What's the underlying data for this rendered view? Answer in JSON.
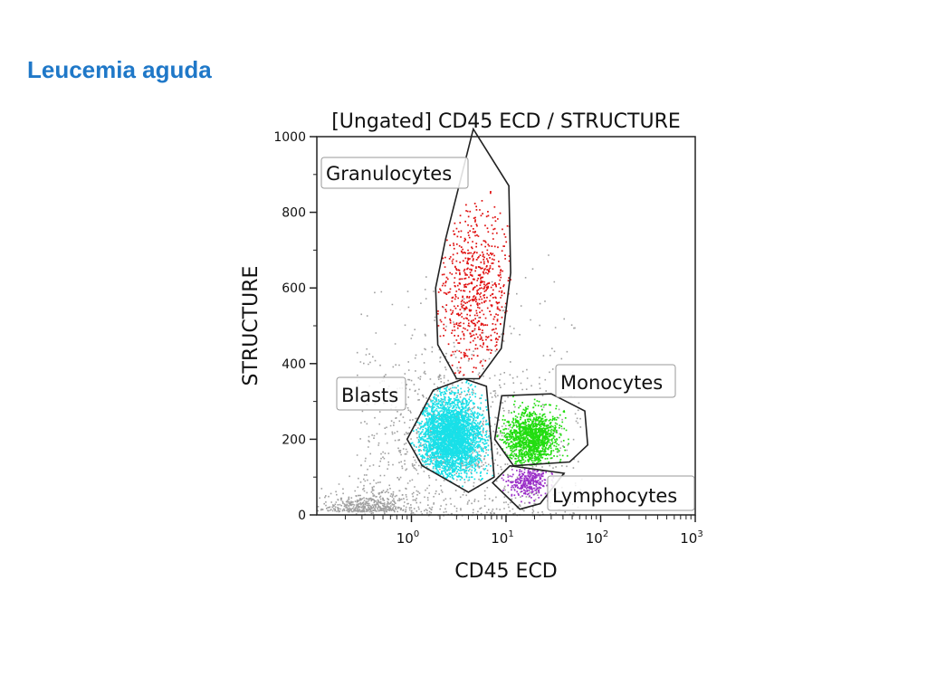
{
  "slide": {
    "title": "Leucemia aguda"
  },
  "colors": {
    "title": "#1f78c8",
    "background_events": "#a0a0a0",
    "granulocytes": "#e01010",
    "blasts": "#18e0e8",
    "monocytes": "#22dd10",
    "lymphocytes": "#9b30c8",
    "gate_outline": "#222222"
  },
  "chart_data": {
    "type": "scatter",
    "title": "[Ungated] CD45 ECD / STRUCTURE",
    "xlabel": "CD45 ECD",
    "ylabel": "STRUCTURE",
    "x_scale": "log",
    "xlim": [
      0.1,
      1000
    ],
    "ylim": [
      0,
      1000
    ],
    "x_ticks": [
      {
        "base": "10",
        "exp": "0"
      },
      {
        "base": "10",
        "exp": "1"
      },
      {
        "base": "10",
        "exp": "2"
      },
      {
        "base": "10",
        "exp": "3"
      }
    ],
    "y_ticks": [
      "0",
      "200",
      "400",
      "600",
      "800",
      "1000"
    ],
    "gates": [
      {
        "name": "Granulocytes",
        "label": "Granulocytes",
        "color": "#e01010",
        "polygon": [
          [
            4.5,
            1020
          ],
          [
            10.7,
            870
          ],
          [
            11.2,
            640
          ],
          [
            8.9,
            440
          ],
          [
            5.2,
            360
          ],
          [
            3,
            360
          ],
          [
            1.9,
            450
          ],
          [
            1.8,
            600
          ],
          [
            2.3,
            730
          ]
        ],
        "center": [
          4.5,
          600
        ],
        "spread": [
          0.22,
          110
        ],
        "n": 650
      },
      {
        "name": "Blasts",
        "label": "Blasts",
        "color": "#18e0e8",
        "polygon": [
          [
            3.6,
            360
          ],
          [
            6.2,
            340
          ],
          [
            7.5,
            100
          ],
          [
            4,
            60
          ],
          [
            1.3,
            130
          ],
          [
            0.9,
            200
          ],
          [
            1.7,
            330
          ]
        ],
        "center": [
          2.6,
          210
        ],
        "spread": [
          0.16,
          50
        ],
        "n": 3000
      },
      {
        "name": "Monocytes",
        "label": "Monocytes",
        "color": "#22dd10",
        "polygon": [
          [
            9,
            315
          ],
          [
            30,
            320
          ],
          [
            68,
            275
          ],
          [
            73,
            185
          ],
          [
            47,
            140
          ],
          [
            12,
            130
          ],
          [
            7.6,
            200
          ]
        ],
        "center": [
          18,
          205
        ],
        "spread": [
          0.14,
          35
        ],
        "n": 1300
      },
      {
        "name": "Lymphocytes",
        "label": "Lymphocytes",
        "color": "#9b30c8",
        "polygon": [
          [
            11,
            130
          ],
          [
            41,
            110
          ],
          [
            23,
            30
          ],
          [
            14,
            15
          ],
          [
            7.2,
            85
          ]
        ],
        "center": [
          17,
          90
        ],
        "spread": [
          0.1,
          20
        ],
        "n": 300
      }
    ],
    "background_events": {
      "n": 1700
    },
    "legend": "none"
  }
}
